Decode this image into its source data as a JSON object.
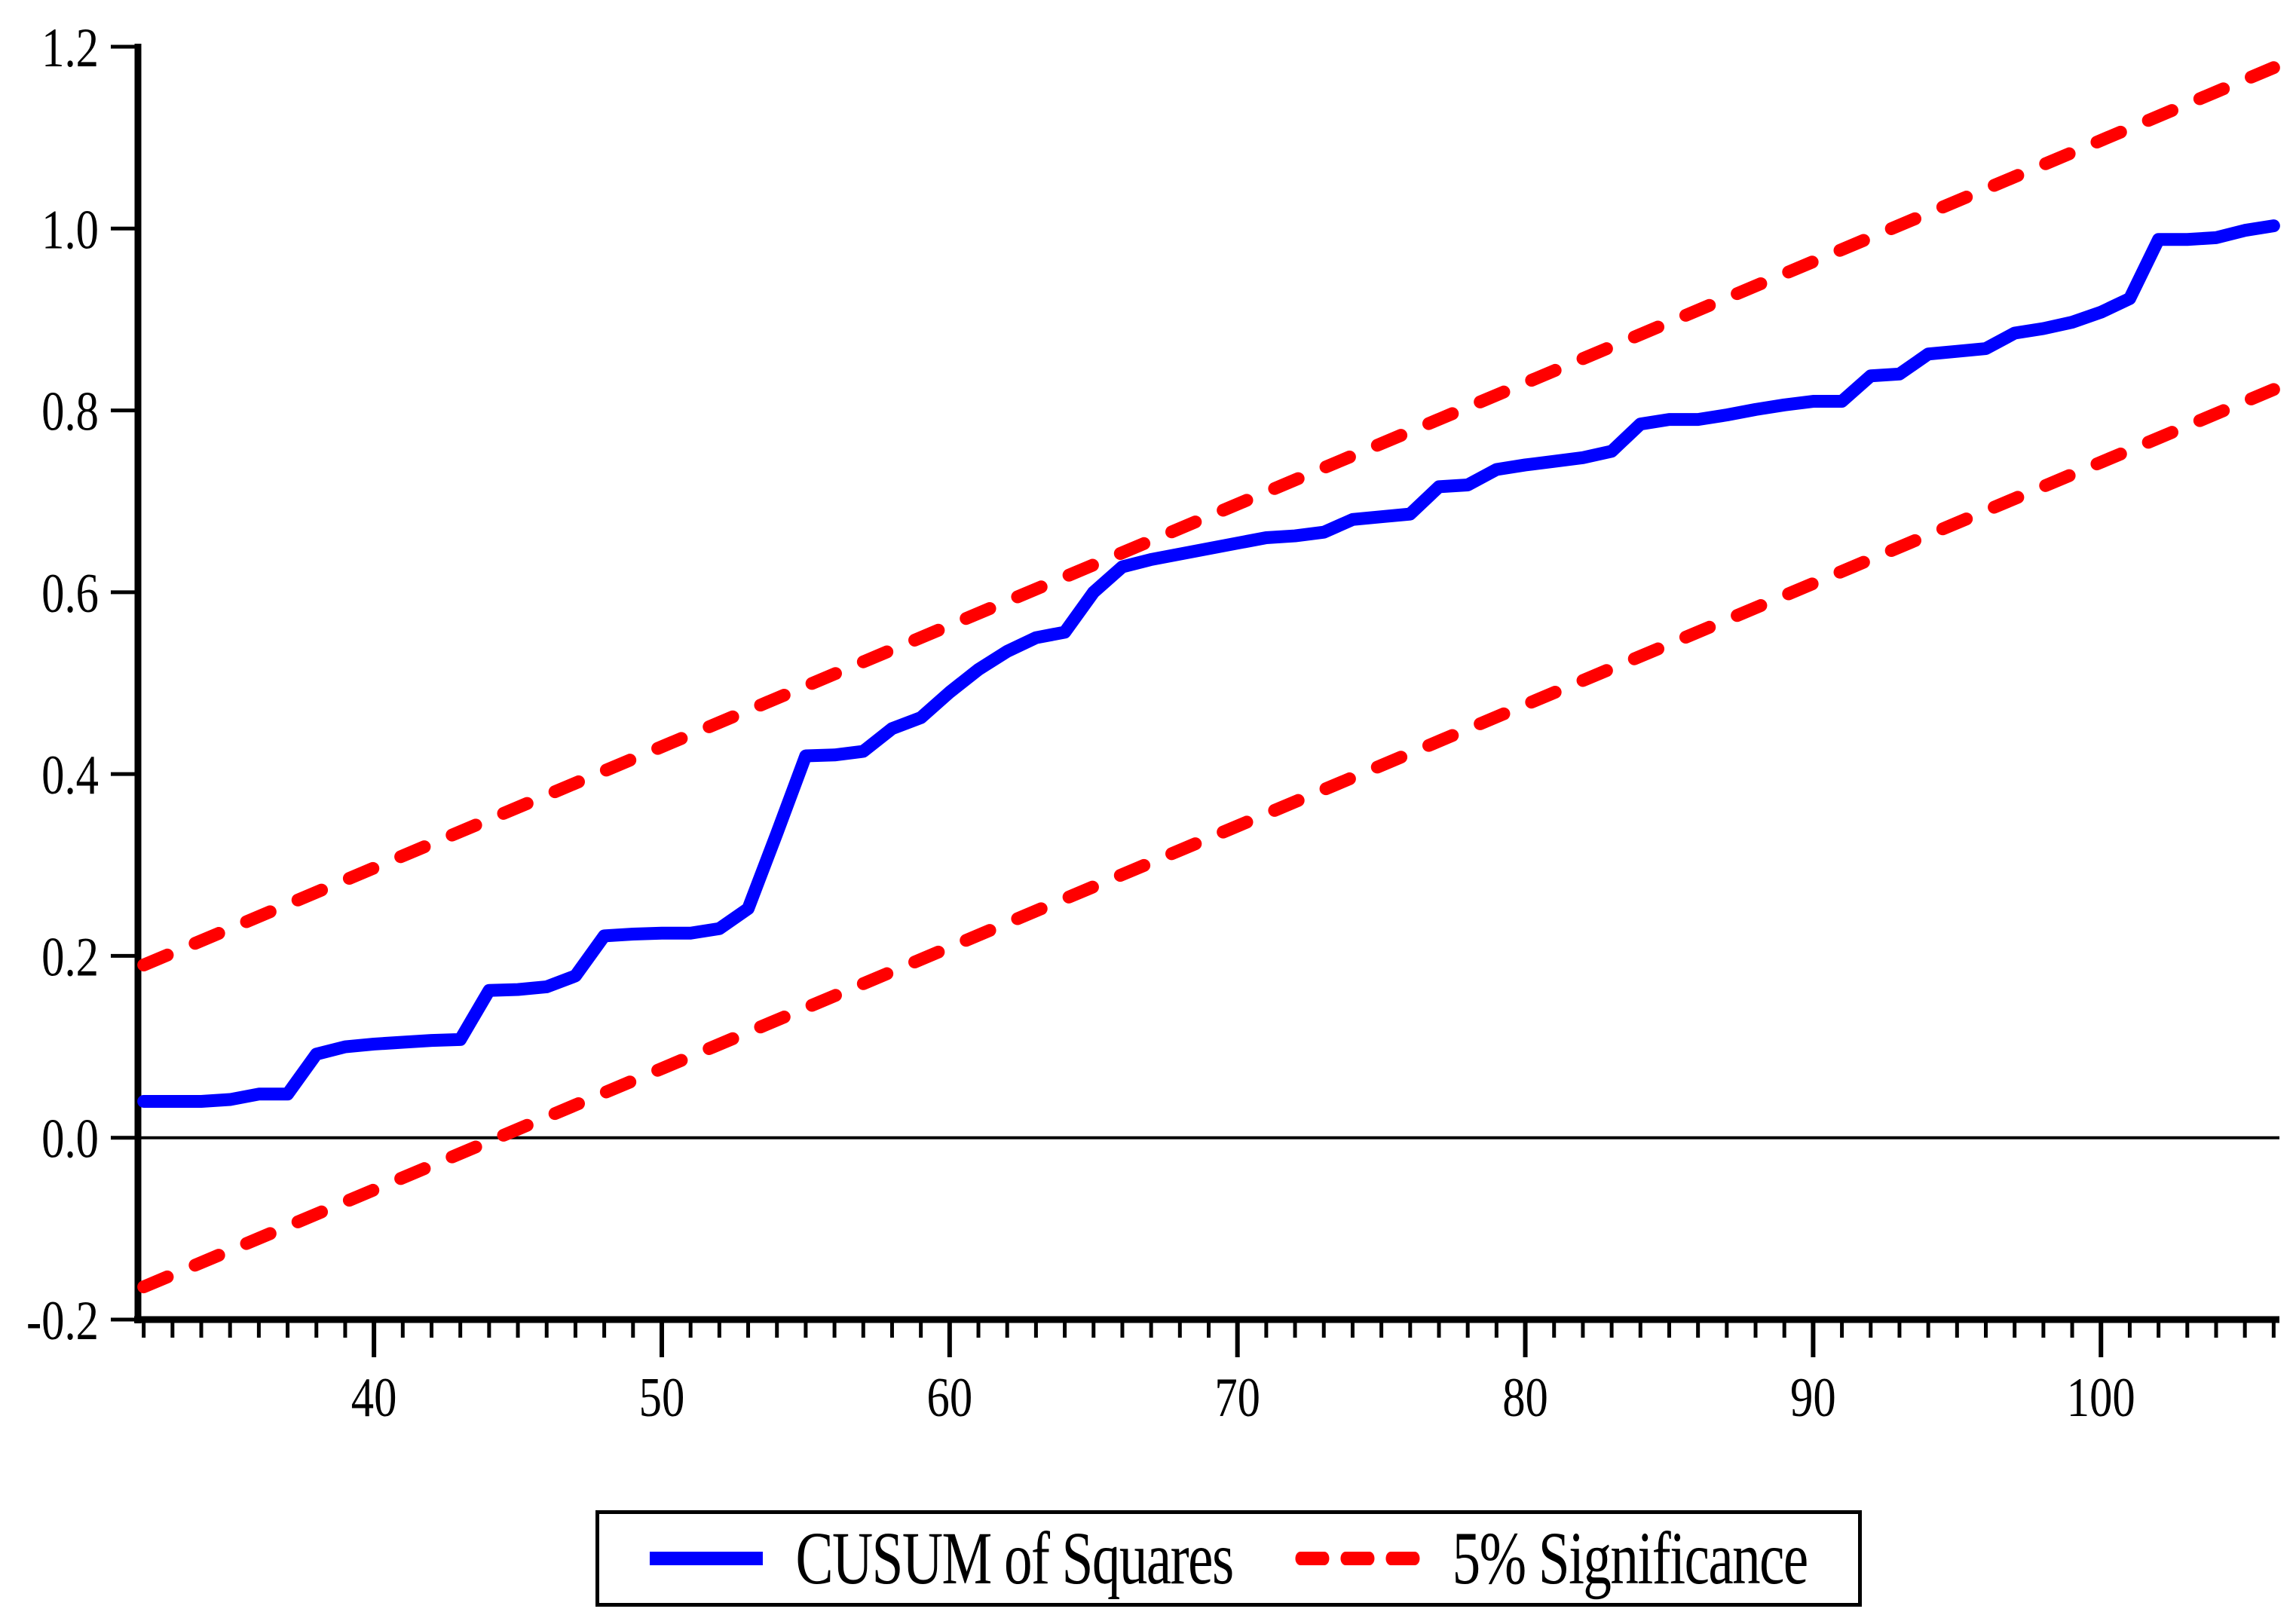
{
  "chart_data": {
    "type": "line",
    "title": "",
    "xlabel": "",
    "ylabel": "",
    "xlim": [
      31.8,
      106.2
    ],
    "ylim": [
      -0.2,
      1.2
    ],
    "grid": false,
    "zero_line": true,
    "x_ticks": [
      40,
      50,
      60,
      70,
      80,
      90,
      100
    ],
    "x_tick_labels": [
      "40",
      "50",
      "60",
      "70",
      "80",
      "90",
      "100"
    ],
    "x_minor_tick_step": 1,
    "y_ticks": [
      -0.2,
      0.0,
      0.2,
      0.4,
      0.6,
      0.8,
      1.0,
      1.2
    ],
    "y_tick_labels": [
      "-0.2",
      "0.0",
      "0.2",
      "0.4",
      "0.6",
      "0.8",
      "1.0",
      "1.2"
    ],
    "x": [
      32,
      33,
      34,
      35,
      36,
      37,
      38,
      39,
      40,
      41,
      42,
      43,
      44,
      45,
      46,
      47,
      48,
      49,
      50,
      51,
      52,
      53,
      54,
      55,
      56,
      57,
      58,
      59,
      60,
      61,
      62,
      63,
      64,
      65,
      66,
      67,
      68,
      69,
      70,
      71,
      72,
      73,
      74,
      75,
      76,
      77,
      78,
      79,
      80,
      81,
      82,
      83,
      84,
      85,
      86,
      87,
      88,
      89,
      90,
      91,
      92,
      93,
      94,
      95,
      96,
      97,
      98,
      99,
      100,
      101,
      102,
      103,
      104,
      105,
      106
    ],
    "series": [
      {
        "name": "CUSUM of Squares",
        "color": "#0000ff",
        "style": "solid",
        "values": [
          0.04,
          0.04,
          0.04,
          0.042,
          0.048,
          0.048,
          0.092,
          0.1,
          0.103,
          0.105,
          0.107,
          0.108,
          0.162,
          0.163,
          0.166,
          0.178,
          0.222,
          0.224,
          0.225,
          0.225,
          0.23,
          0.252,
          0.335,
          0.42,
          0.421,
          0.425,
          0.45,
          0.462,
          0.49,
          0.515,
          0.535,
          0.55,
          0.556,
          0.6,
          0.628,
          0.636,
          0.642,
          0.648,
          0.654,
          0.66,
          0.662,
          0.666,
          0.68,
          0.683,
          0.686,
          0.716,
          0.718,
          0.735,
          0.74,
          0.744,
          0.748,
          0.755,
          0.785,
          0.79,
          0.79,
          0.795,
          0.801,
          0.806,
          0.81,
          0.81,
          0.838,
          0.84,
          0.862,
          0.865,
          0.868,
          0.885,
          0.89,
          0.897,
          0.908,
          0.923,
          0.988,
          0.988,
          0.99,
          0.998,
          1.003
        ]
      },
      {
        "name": "5% Significance (upper bound)",
        "color": "#ff0000",
        "style": "dashed",
        "x": [
          32,
          106
        ],
        "values": [
          0.19,
          1.177
        ]
      },
      {
        "name": "5% Significance (lower bound)",
        "color": "#ff0000",
        "style": "dashed",
        "x": [
          32,
          106
        ],
        "values": [
          -0.164,
          0.823
        ]
      }
    ],
    "legend": {
      "position": "bottom-center",
      "border": true,
      "entries": [
        {
          "label": "CUSUM of Squares",
          "color": "#0000ff",
          "style": "solid"
        },
        {
          "label": "5% Significance",
          "color": "#ff0000",
          "style": "dashed"
        }
      ]
    },
    "colors": {
      "cusum": "#0000ff",
      "significance": "#ff0000",
      "axis": "#000000",
      "background": "#ffffff"
    }
  }
}
